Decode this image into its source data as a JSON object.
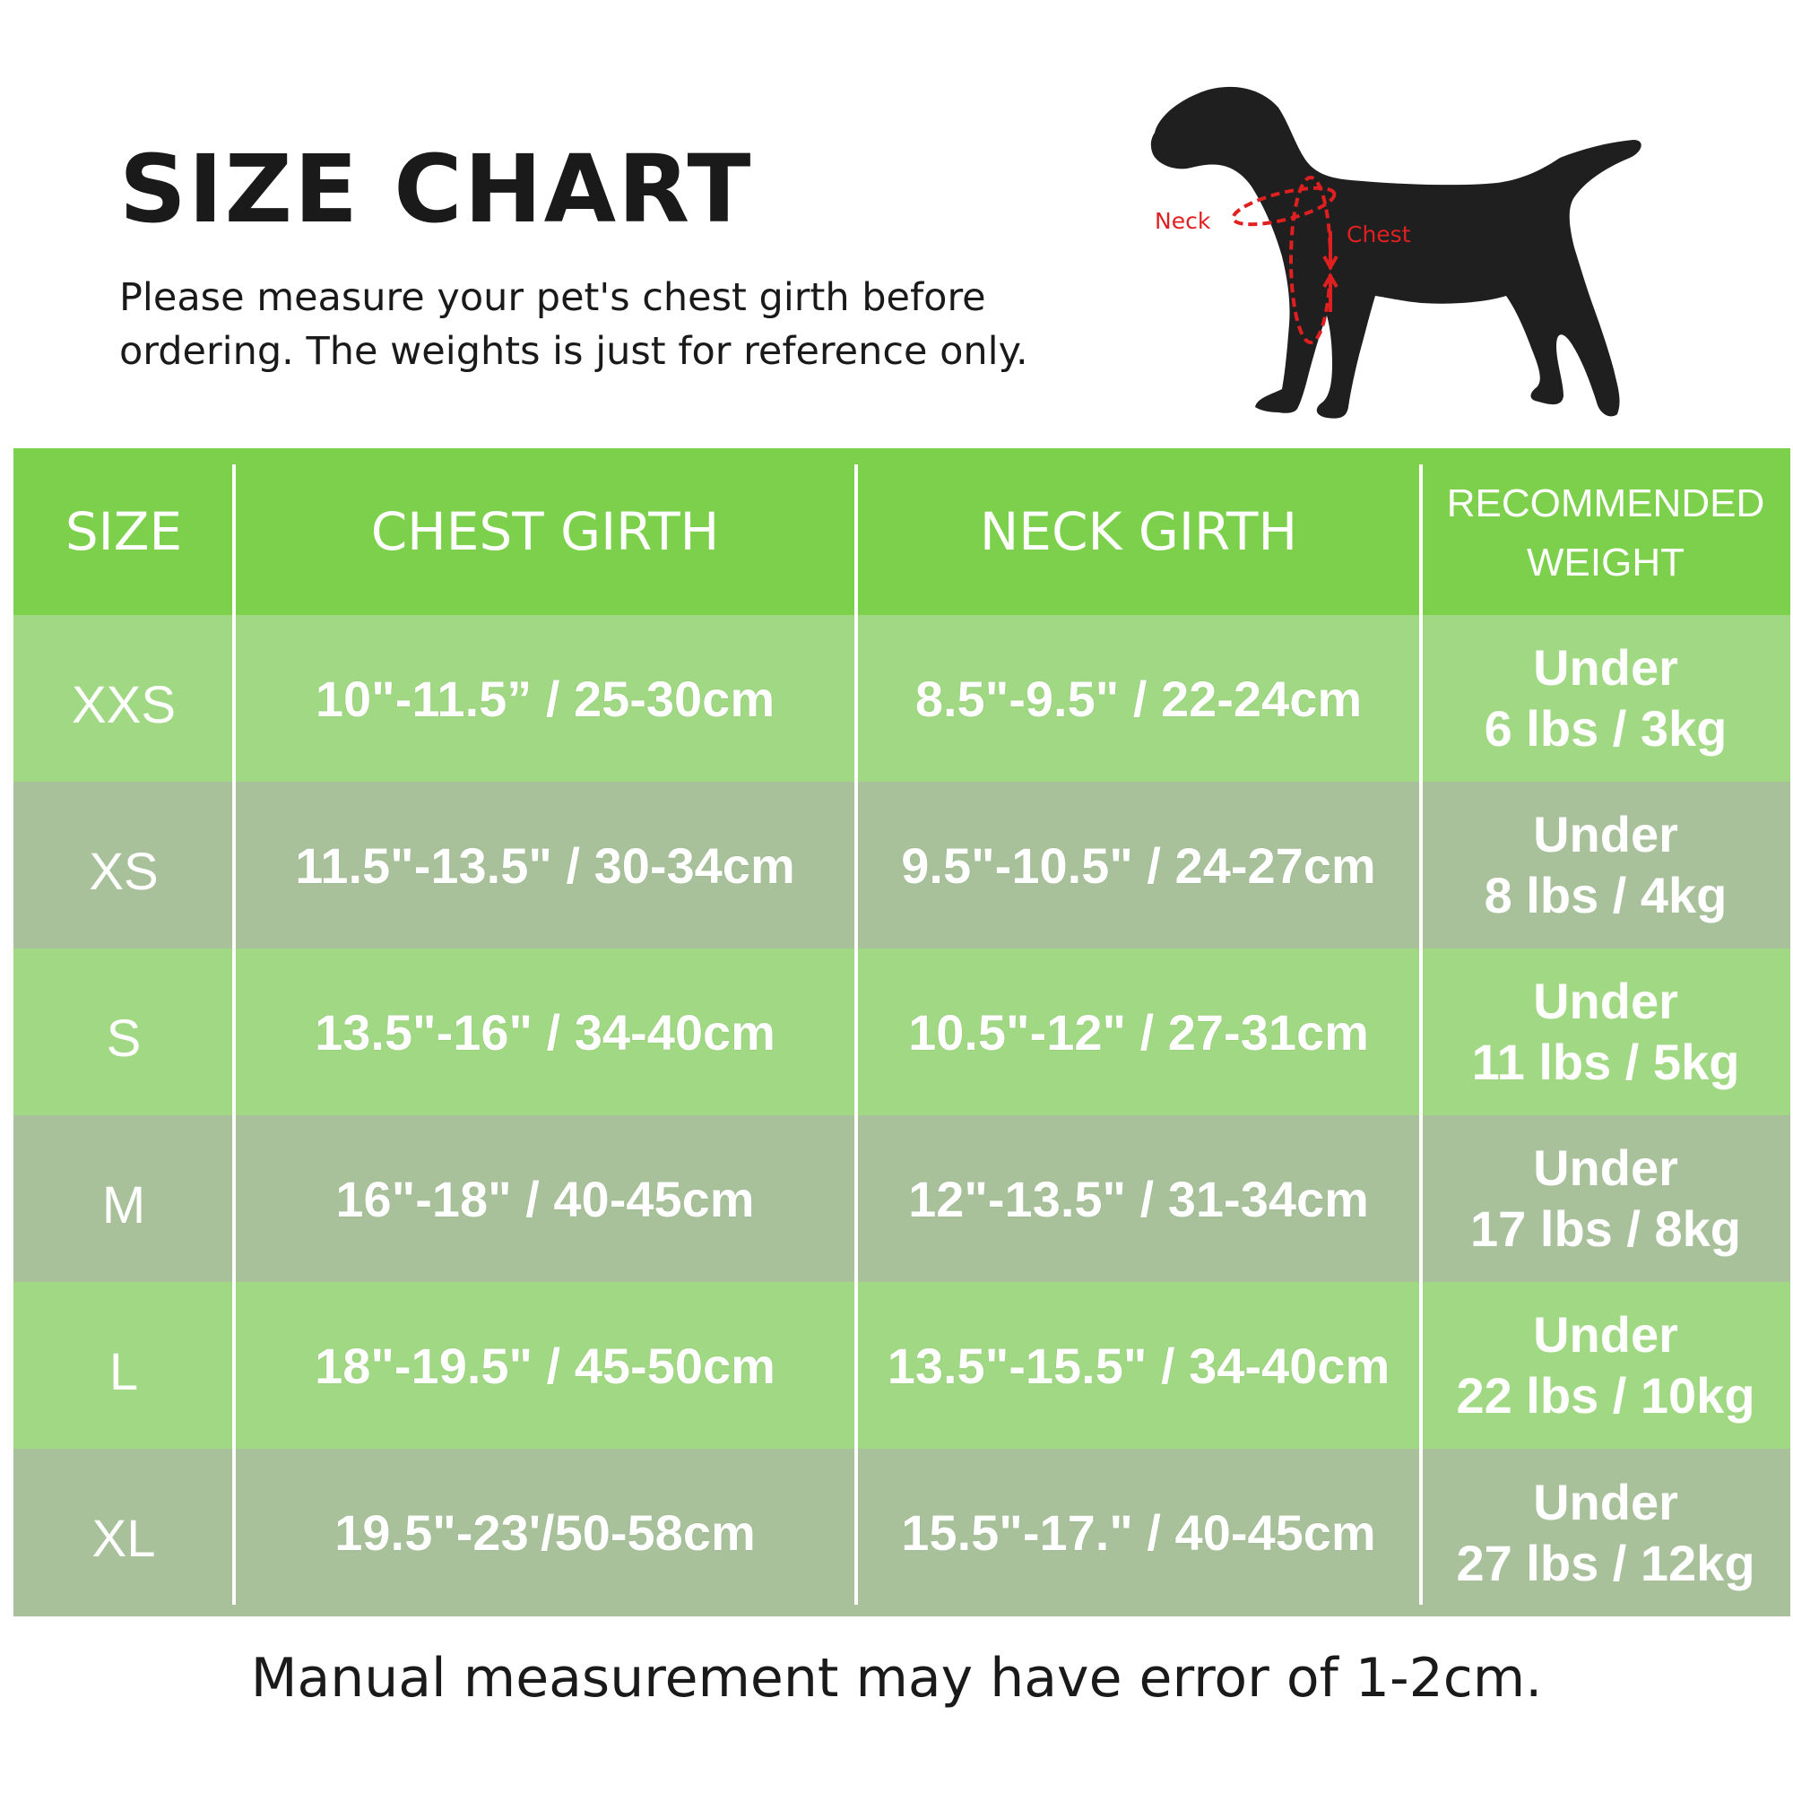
{
  "title": "SIZE CHART",
  "subtitle_line1": "Please measure your pet's chest girth before",
  "subtitle_line2": "ordering. The weights is just for reference only.",
  "diagram": {
    "neck_label": "Neck",
    "chest_label": "Chest",
    "silhouette_color": "#1f1f1f",
    "marker_color": "#e02020"
  },
  "table": {
    "headers": {
      "size": "SIZE",
      "chest": "CHEST GIRTH",
      "neck": "NECK GIRTH",
      "weight_line1": "RECOMMENDED",
      "weight_line2": "WEIGHT"
    },
    "rows": [
      {
        "size": "XXS",
        "chest": "10\"-11.5” / 25-30cm",
        "neck": "8.5\"-9.5\" / 22-24cm",
        "weight_line1": "Under",
        "weight_line2": "6 lbs / 3kg"
      },
      {
        "size": "XS",
        "chest": "11.5\"-13.5\" / 30-34cm",
        "neck": "9.5\"-10.5\" / 24-27cm",
        "weight_line1": "Under",
        "weight_line2": "8 lbs / 4kg"
      },
      {
        "size": "S",
        "chest": "13.5\"-16\" / 34-40cm",
        "neck": "10.5\"-12\" / 27-31cm",
        "weight_line1": "Under",
        "weight_line2": "11 lbs / 5kg"
      },
      {
        "size": "M",
        "chest": "16\"-18\" / 40-45cm",
        "neck": "12\"-13.5\" / 31-34cm",
        "weight_line1": "Under",
        "weight_line2": "17 lbs / 8kg"
      },
      {
        "size": "L",
        "chest": "18\"-19.5\" / 45-50cm",
        "neck": "13.5\"-15.5\" / 34-40cm",
        "weight_line1": "Under",
        "weight_line2": "22 lbs / 10kg"
      },
      {
        "size": "XL",
        "chest": "19.5\"-23'/50-58cm",
        "neck": "15.5\"-17.\" / 40-45cm",
        "weight_line1": "Under",
        "weight_line2": "27 lbs / 12kg"
      }
    ]
  },
  "footer": "Manual measurement may have error of 1-2cm.",
  "colors": {
    "header_green": "#7dd04b",
    "row_light_green": "#a0d883",
    "row_grey_green": "#a8c19b",
    "text_white": "#ffffff",
    "text_dark": "#1a1a1a"
  }
}
